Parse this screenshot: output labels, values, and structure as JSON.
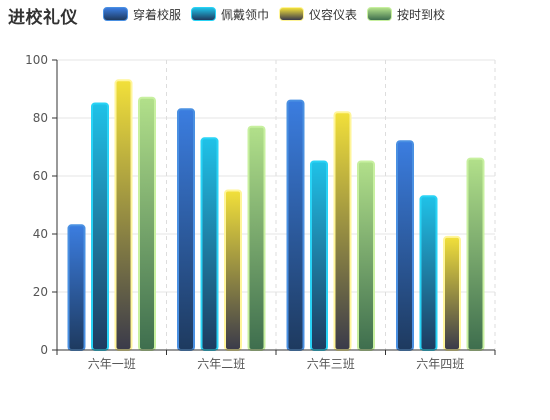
{
  "chart_data": {
    "type": "bar",
    "title": "进校礼仪",
    "categories": [
      "六年一班",
      "六年二班",
      "六年三班",
      "六年四班"
    ],
    "series": [
      {
        "name": "穿着校服",
        "values": [
          43,
          83,
          86,
          72
        ],
        "gradient": [
          "#3b7de0",
          "#1e3a5f"
        ],
        "border": "#4a90e2"
      },
      {
        "name": "佩戴领巾",
        "values": [
          85,
          73,
          65,
          53
        ],
        "gradient": [
          "#1fc2e8",
          "#1e3a5f"
        ],
        "border": "#29d3f5"
      },
      {
        "name": "仪容仪表",
        "values": [
          93,
          55,
          82,
          39
        ],
        "gradient": [
          "#f2e03a",
          "#3a3a4a"
        ],
        "border": "#fff59a"
      },
      {
        "name": "按时到校",
        "values": [
          87,
          77,
          65,
          66
        ],
        "gradient": [
          "#b2e08a",
          "#3e6e4e"
        ],
        "border": "#c8f0a0"
      }
    ],
    "ylim": [
      0,
      100
    ],
    "yticks": [
      0,
      20,
      40,
      60,
      80,
      100
    ],
    "legend_position": "top",
    "grid": true
  }
}
